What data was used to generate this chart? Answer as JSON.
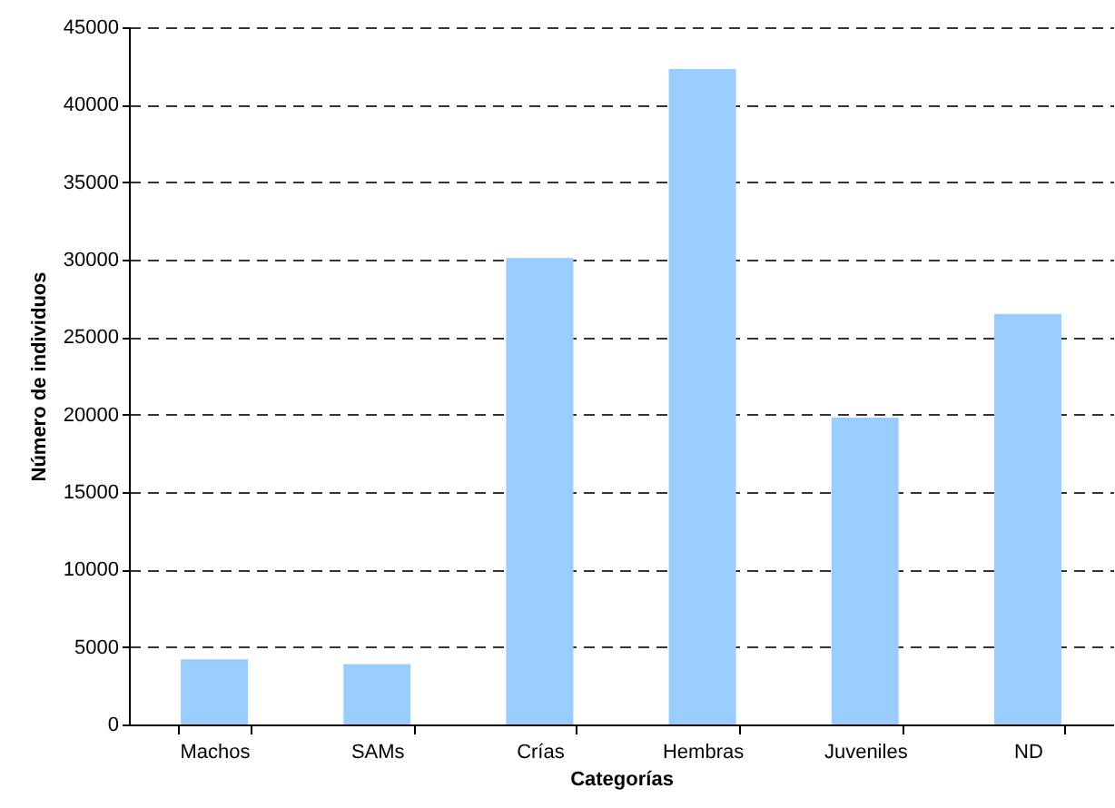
{
  "chart_data": {
    "type": "bar",
    "xlabel": "Categorías",
    "ylabel": "Número de individuos",
    "categories": [
      "Machos",
      "SAMs",
      "Crías",
      "Hembras",
      "Juveniles",
      "ND"
    ],
    "values": [
      4200,
      3900,
      30100,
      42300,
      19800,
      26500
    ],
    "color": "#99ccff",
    "ylim": [
      0,
      45000
    ],
    "yticks": [
      0,
      5000,
      10000,
      15000,
      20000,
      25000,
      30000,
      35000,
      40000,
      45000
    ],
    "grid": "y",
    "line_style": "dashed"
  }
}
